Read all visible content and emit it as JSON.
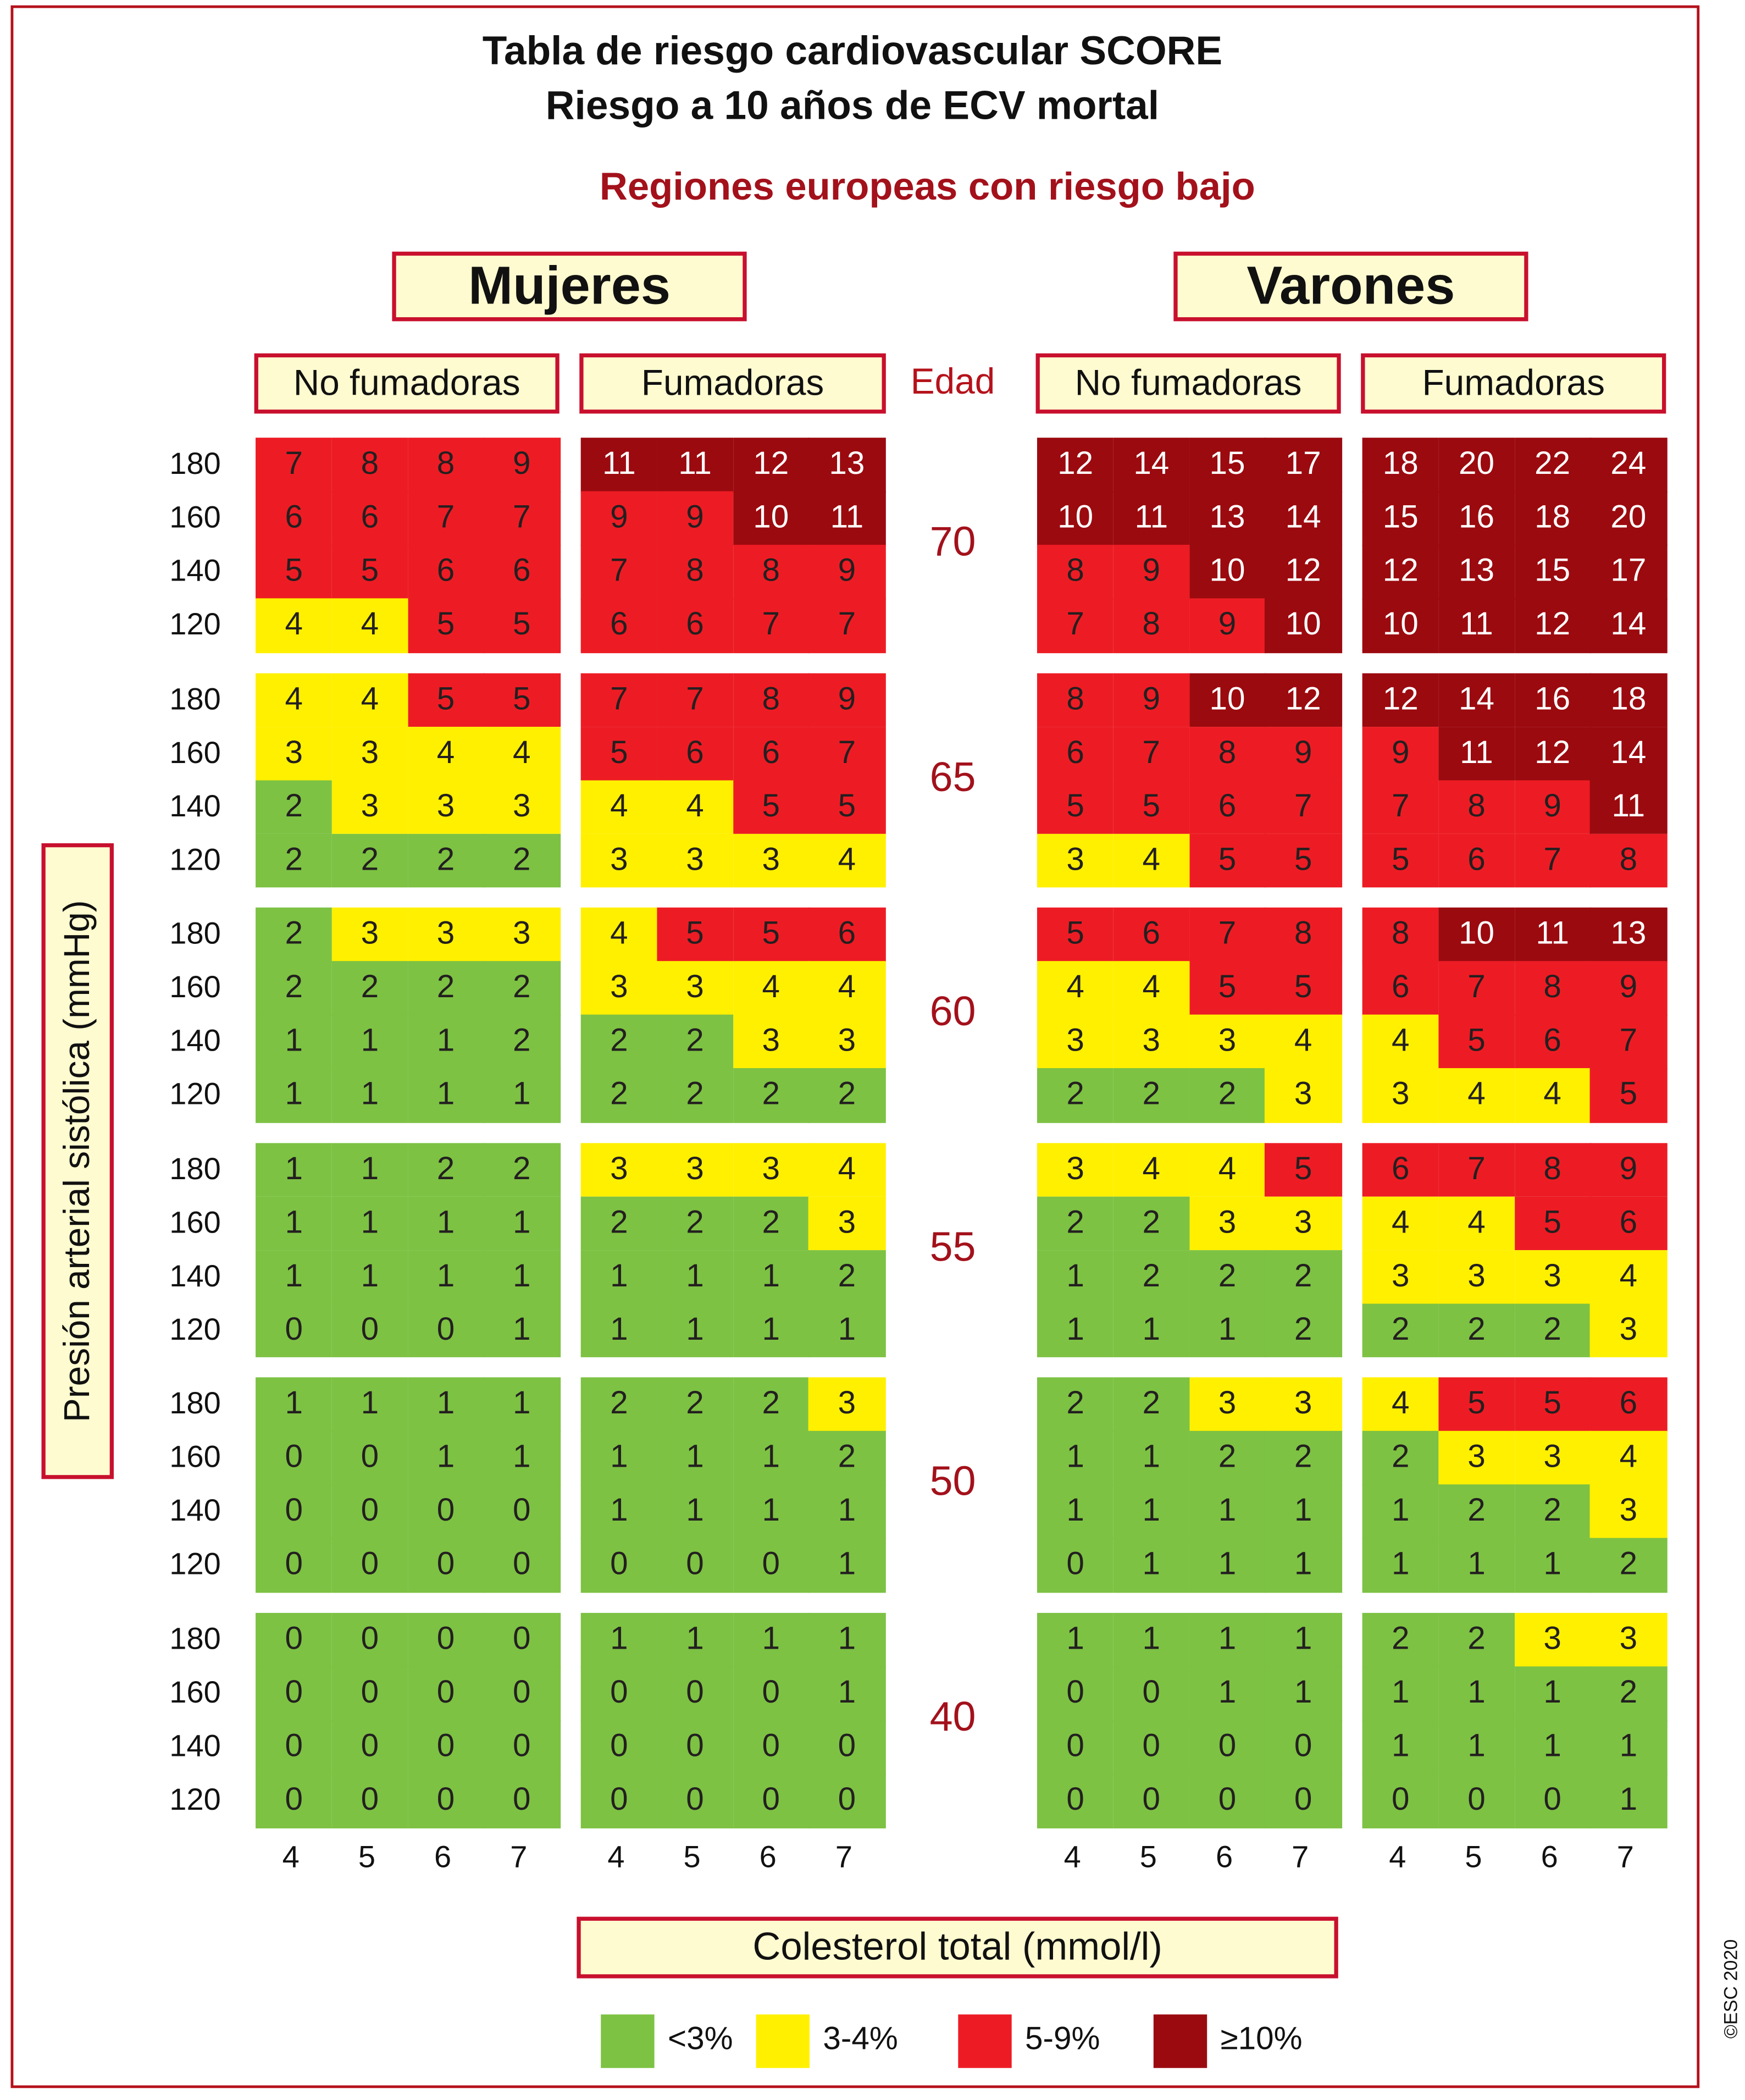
{
  "title_line1": "Tabla de riesgo cardiovascular SCORE",
  "title_line2": "Riesgo a 10 años de ECV mortal",
  "subtitle": "Regiones europeas con riesgo bajo",
  "sex_labels": {
    "women": "Mujeres",
    "men": "Varones"
  },
  "smoking_labels": {
    "nonsmoker": "No fumadoras",
    "smoker": "Fumadoras"
  },
  "age_header": "Edad",
  "y_axis_label": "Presión arterial sistólica (mmHg)",
  "x_axis_label": "Colesterol total (mmol/l)",
  "copyright": "©ESC 2020",
  "legend": [
    {
      "label": "<3%",
      "color": "#7dc243"
    },
    {
      "label": "3-4%",
      "color": "#fff000"
    },
    {
      "label": "5-9%",
      "color": "#ed1c24"
    },
    {
      "label": "≥10%",
      "color": "#9b0a0f"
    }
  ],
  "chart_data": {
    "type": "heatmap",
    "title": "Tabla de riesgo cardiovascular SCORE",
    "xlabel": "Colesterol total (mmol/l)",
    "ylabel": "Presión arterial sistólica (mmHg)",
    "cholesterol": [
      "4",
      "5",
      "6",
      "7"
    ],
    "systolic_bp": [
      "180",
      "160",
      "140",
      "120"
    ],
    "ages": [
      "70",
      "65",
      "60",
      "55",
      "50",
      "40"
    ],
    "color_scale": [
      {
        "range": "<3%",
        "min": 0,
        "max": 2,
        "color": "#7dc243"
      },
      {
        "range": "3-4%",
        "min": 3,
        "max": 4,
        "color": "#fff000"
      },
      {
        "range": "5-9%",
        "min": 5,
        "max": 9,
        "color": "#ed1c24"
      },
      {
        "range": "≥10%",
        "min": 10,
        "max": 100,
        "color": "#9b0a0f"
      }
    ],
    "panels": [
      {
        "sex": "Mujeres",
        "smoking": "No fumadoras",
        "values": [
          [
            [
              7,
              8,
              8,
              9
            ],
            [
              6,
              6,
              7,
              7
            ],
            [
              5,
              5,
              6,
              6
            ],
            [
              4,
              4,
              5,
              5
            ]
          ],
          [
            [
              4,
              4,
              5,
              5
            ],
            [
              3,
              3,
              4,
              4
            ],
            [
              2,
              3,
              3,
              3
            ],
            [
              2,
              2,
              2,
              2
            ]
          ],
          [
            [
              2,
              3,
              3,
              3
            ],
            [
              2,
              2,
              2,
              2
            ],
            [
              1,
              1,
              1,
              2
            ],
            [
              1,
              1,
              1,
              1
            ]
          ],
          [
            [
              1,
              1,
              2,
              2
            ],
            [
              1,
              1,
              1,
              1
            ],
            [
              1,
              1,
              1,
              1
            ],
            [
              0,
              0,
              0,
              1
            ]
          ],
          [
            [
              1,
              1,
              1,
              1
            ],
            [
              0,
              0,
              1,
              1
            ],
            [
              0,
              0,
              0,
              0
            ],
            [
              0,
              0,
              0,
              0
            ]
          ],
          [
            [
              0,
              0,
              0,
              0
            ],
            [
              0,
              0,
              0,
              0
            ],
            [
              0,
              0,
              0,
              0
            ],
            [
              0,
              0,
              0,
              0
            ]
          ]
        ]
      },
      {
        "sex": "Mujeres",
        "smoking": "Fumadoras",
        "values": [
          [
            [
              11,
              11,
              12,
              13
            ],
            [
              9,
              9,
              10,
              11
            ],
            [
              7,
              8,
              8,
              9
            ],
            [
              6,
              6,
              7,
              7
            ]
          ],
          [
            [
              7,
              7,
              8,
              9
            ],
            [
              5,
              6,
              6,
              7
            ],
            [
              4,
              4,
              5,
              5
            ],
            [
              3,
              3,
              3,
              4
            ]
          ],
          [
            [
              4,
              5,
              5,
              6
            ],
            [
              3,
              3,
              4,
              4
            ],
            [
              2,
              2,
              3,
              3
            ],
            [
              2,
              2,
              2,
              2
            ]
          ],
          [
            [
              3,
              3,
              3,
              4
            ],
            [
              2,
              2,
              2,
              3
            ],
            [
              1,
              1,
              1,
              2
            ],
            [
              1,
              1,
              1,
              1
            ]
          ],
          [
            [
              2,
              2,
              2,
              3
            ],
            [
              1,
              1,
              1,
              2
            ],
            [
              1,
              1,
              1,
              1
            ],
            [
              0,
              0,
              0,
              1
            ]
          ],
          [
            [
              1,
              1,
              1,
              1
            ],
            [
              0,
              0,
              0,
              1
            ],
            [
              0,
              0,
              0,
              0
            ],
            [
              0,
              0,
              0,
              0
            ]
          ]
        ]
      },
      {
        "sex": "Varones",
        "smoking": "No fumadoras",
        "values": [
          [
            [
              12,
              14,
              15,
              17
            ],
            [
              10,
              11,
              13,
              14
            ],
            [
              8,
              9,
              10,
              12
            ],
            [
              7,
              8,
              9,
              10
            ]
          ],
          [
            [
              8,
              9,
              10,
              12
            ],
            [
              6,
              7,
              8,
              9
            ],
            [
              5,
              5,
              6,
              7
            ],
            [
              3,
              4,
              5,
              5
            ]
          ],
          [
            [
              5,
              6,
              7,
              8
            ],
            [
              4,
              4,
              5,
              5
            ],
            [
              3,
              3,
              3,
              4
            ],
            [
              2,
              2,
              2,
              3
            ]
          ],
          [
            [
              3,
              4,
              4,
              5
            ],
            [
              2,
              2,
              3,
              3
            ],
            [
              1,
              2,
              2,
              2
            ],
            [
              1,
              1,
              1,
              2
            ]
          ],
          [
            [
              2,
              2,
              3,
              3
            ],
            [
              1,
              1,
              2,
              2
            ],
            [
              1,
              1,
              1,
              1
            ],
            [
              0,
              1,
              1,
              1
            ]
          ],
          [
            [
              1,
              1,
              1,
              1
            ],
            [
              0,
              0,
              1,
              1
            ],
            [
              0,
              0,
              0,
              0
            ],
            [
              0,
              0,
              0,
              0
            ]
          ]
        ]
      },
      {
        "sex": "Varones",
        "smoking": "Fumadoras",
        "values": [
          [
            [
              18,
              20,
              22,
              24
            ],
            [
              15,
              16,
              18,
              20
            ],
            [
              12,
              13,
              15,
              17
            ],
            [
              10,
              11,
              12,
              14
            ]
          ],
          [
            [
              12,
              14,
              16,
              18
            ],
            [
              9,
              11,
              12,
              14
            ],
            [
              7,
              8,
              9,
              11
            ],
            [
              5,
              6,
              7,
              8
            ]
          ],
          [
            [
              8,
              10,
              11,
              13
            ],
            [
              6,
              7,
              8,
              9
            ],
            [
              4,
              5,
              6,
              7
            ],
            [
              3,
              4,
              4,
              5
            ]
          ],
          [
            [
              6,
              7,
              8,
              9
            ],
            [
              4,
              4,
              5,
              6
            ],
            [
              3,
              3,
              3,
              4
            ],
            [
              2,
              2,
              2,
              3
            ]
          ],
          [
            [
              4,
              5,
              5,
              6
            ],
            [
              2,
              3,
              3,
              4
            ],
            [
              1,
              2,
              2,
              3
            ],
            [
              1,
              1,
              1,
              2
            ]
          ],
          [
            [
              2,
              2,
              3,
              3
            ],
            [
              1,
              1,
              1,
              2
            ],
            [
              1,
              1,
              1,
              1
            ],
            [
              0,
              0,
              0,
              1
            ]
          ]
        ]
      }
    ]
  }
}
